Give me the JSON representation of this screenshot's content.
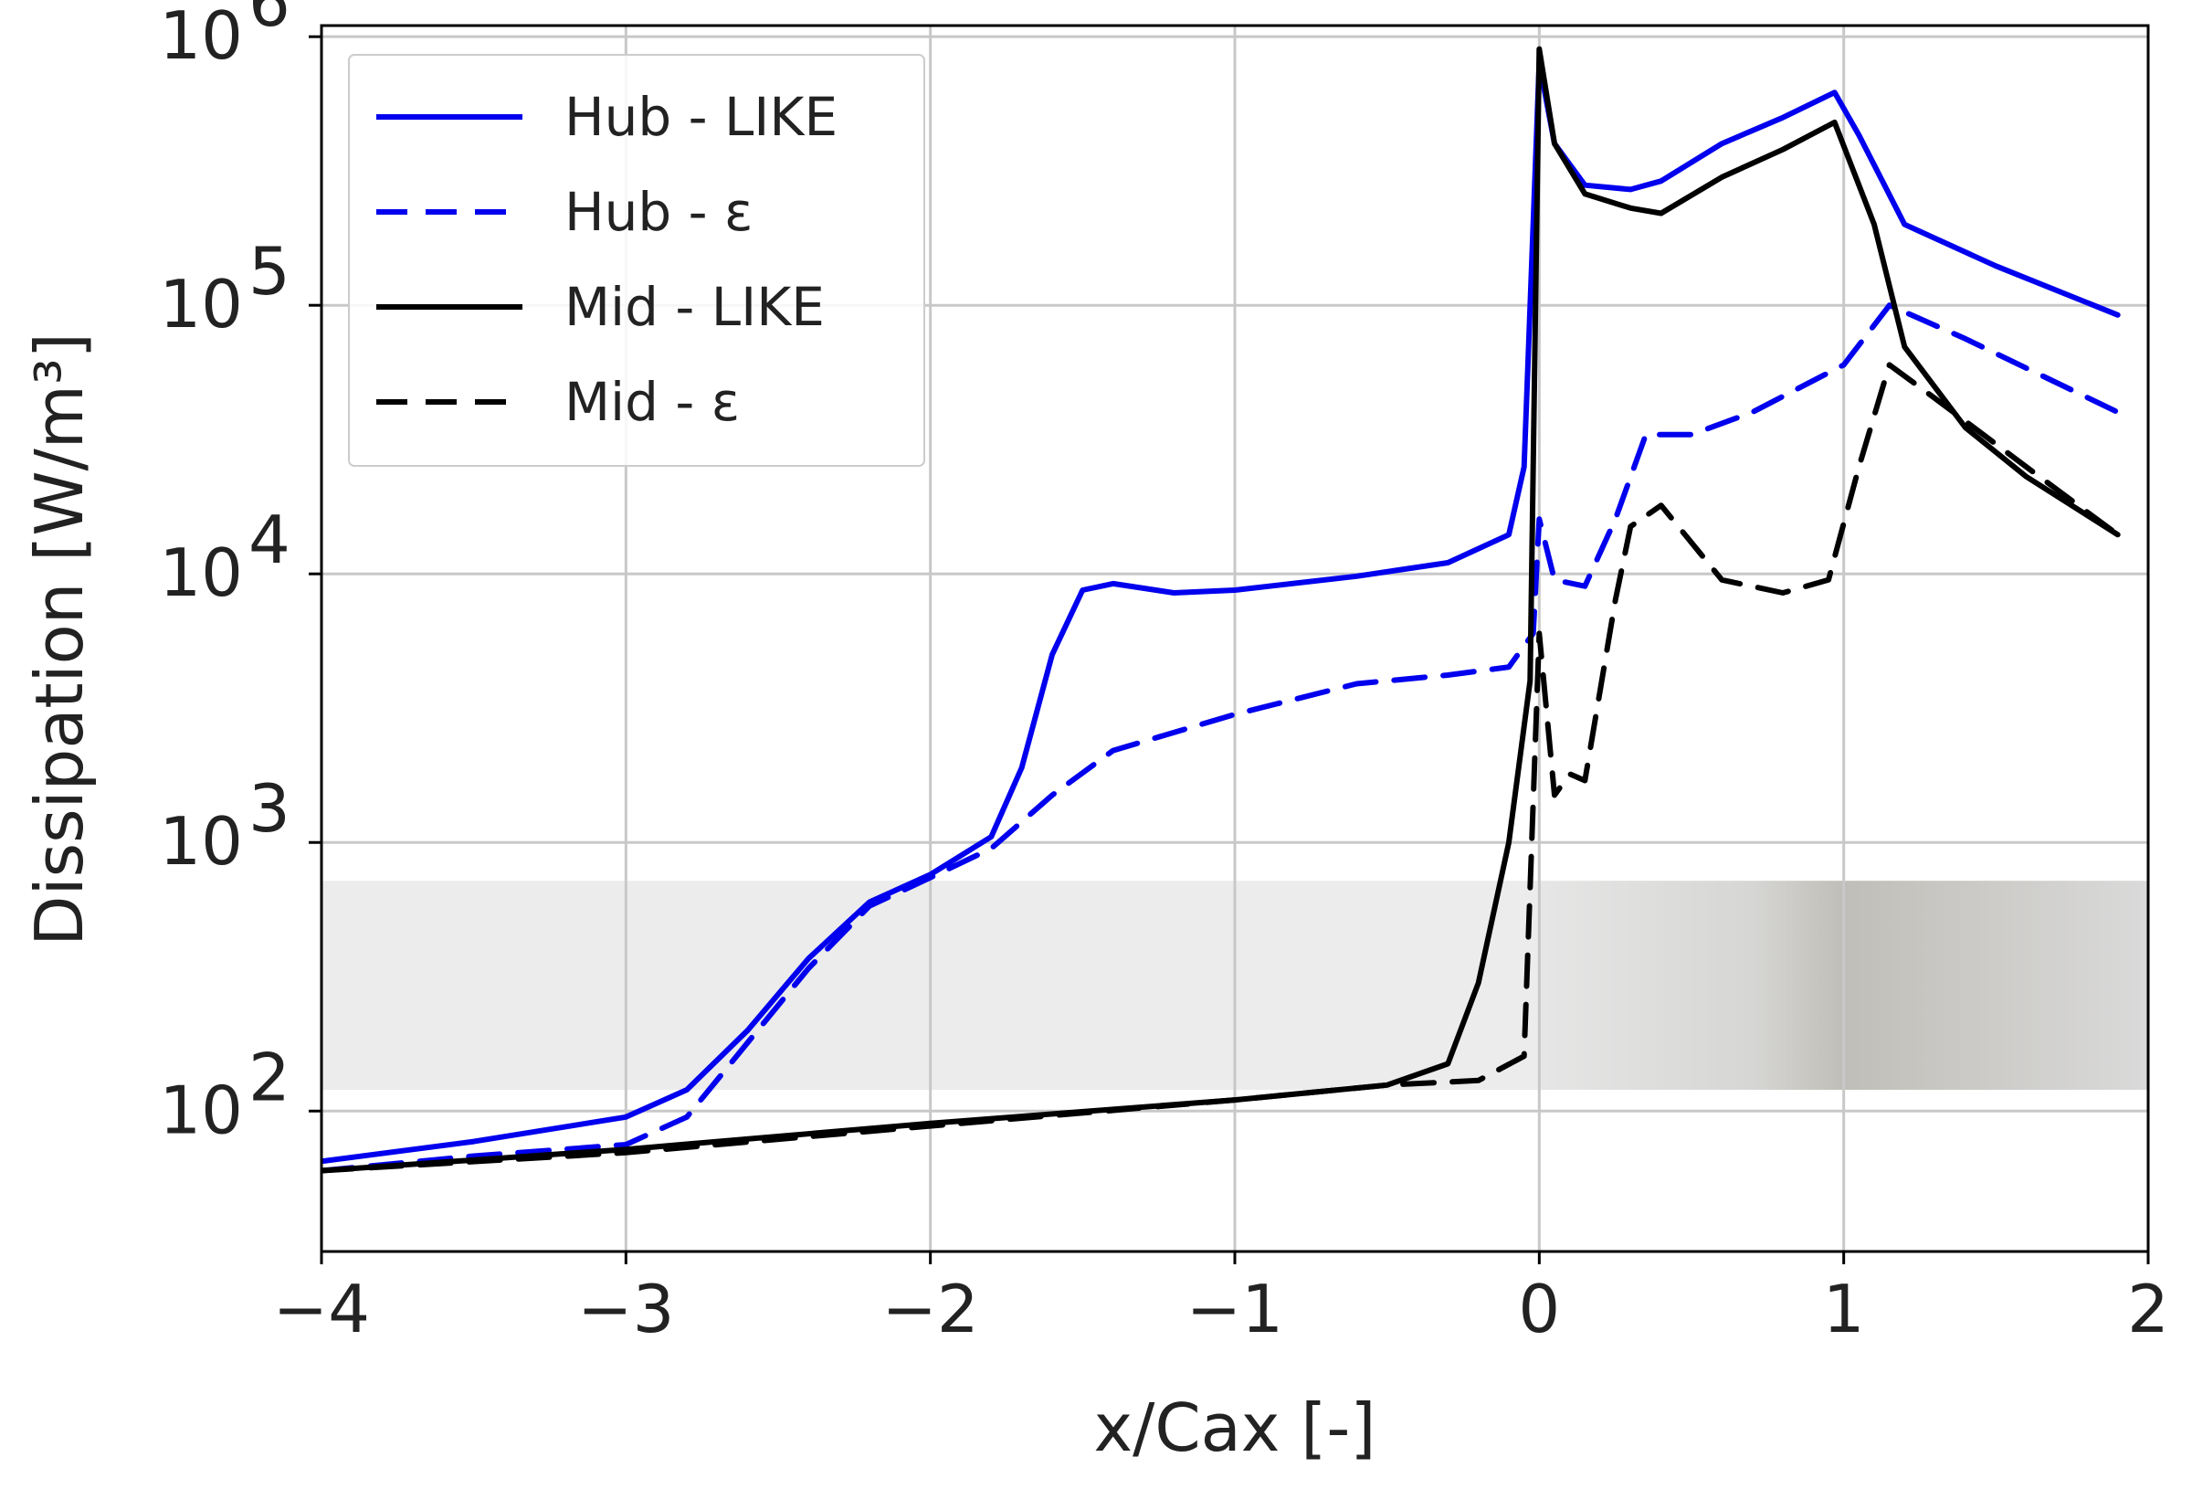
{
  "chart_data": {
    "type": "line",
    "title": "",
    "xlabel": "x/Cax [-]",
    "ylabel": "Dissipation [W/m³]",
    "xlim": [
      -4,
      2
    ],
    "ylim": [
      30,
      1100000
    ],
    "y_scale": "log",
    "grid": true,
    "legend_position": "upper-left",
    "x_ticks": [
      {
        "value": -4,
        "label": "−4"
      },
      {
        "value": -3,
        "label": "−3"
      },
      {
        "value": -2,
        "label": "−2"
      },
      {
        "value": -1,
        "label": "−1"
      },
      {
        "value": 0,
        "label": "0"
      },
      {
        "value": 1,
        "label": "1"
      },
      {
        "value": 2,
        "label": "2"
      }
    ],
    "y_ticks": [
      {
        "value": 100,
        "base": "10",
        "exp": "2"
      },
      {
        "value": 1000,
        "base": "10",
        "exp": "3"
      },
      {
        "value": 10000,
        "base": "10",
        "exp": "4"
      },
      {
        "value": 100000,
        "base": "10",
        "exp": "5"
      },
      {
        "value": 1000000,
        "base": "10",
        "exp": "6"
      }
    ],
    "shaded_regions": [
      {
        "x": [
          -4,
          0
        ],
        "y": [
          120,
          720
        ],
        "color": "#ececec"
      },
      {
        "x": [
          0,
          2
        ],
        "y": [
          120,
          720
        ],
        "color": "#c8c6c0"
      }
    ],
    "series": [
      {
        "name": "Hub - LIKE",
        "color": "#0000ee",
        "dash": "solid",
        "points": [
          [
            -4,
            65
          ],
          [
            -3.5,
            77
          ],
          [
            -3.0,
            95
          ],
          [
            -2.8,
            120
          ],
          [
            -2.6,
            200
          ],
          [
            -2.4,
            370
          ],
          [
            -2.2,
            600
          ],
          [
            -2.0,
            760
          ],
          [
            -1.8,
            1050
          ],
          [
            -1.7,
            1900
          ],
          [
            -1.6,
            5000
          ],
          [
            -1.5,
            8700
          ],
          [
            -1.4,
            9200
          ],
          [
            -1.2,
            8500
          ],
          [
            -1.0,
            8700
          ],
          [
            -0.6,
            9800
          ],
          [
            -0.3,
            11000
          ],
          [
            -0.1,
            14000
          ],
          [
            -0.05,
            25000
          ],
          [
            0.0,
            800000
          ],
          [
            0.05,
            400000
          ],
          [
            0.15,
            280000
          ],
          [
            0.3,
            270000
          ],
          [
            0.4,
            290000
          ],
          [
            0.6,
            400000
          ],
          [
            0.8,
            500000
          ],
          [
            0.97,
            620000
          ],
          [
            1.05,
            430000
          ],
          [
            1.2,
            200000
          ],
          [
            1.5,
            140000
          ],
          [
            1.9,
            92000
          ]
        ]
      },
      {
        "name": "Hub - ε",
        "color": "#0000ee",
        "dash": "dashed",
        "points": [
          [
            -4,
            60
          ],
          [
            -3.5,
            68
          ],
          [
            -3.0,
            75
          ],
          [
            -2.8,
            95
          ],
          [
            -2.6,
            180
          ],
          [
            -2.4,
            340
          ],
          [
            -2.2,
            580
          ],
          [
            -2.0,
            740
          ],
          [
            -1.8,
            950
          ],
          [
            -1.6,
            1500
          ],
          [
            -1.4,
            2200
          ],
          [
            -1.0,
            3000
          ],
          [
            -0.6,
            3900
          ],
          [
            -0.3,
            4200
          ],
          [
            -0.1,
            4500
          ],
          [
            -0.02,
            6000
          ],
          [
            0.0,
            16000
          ],
          [
            0.05,
            9500
          ],
          [
            0.15,
            9000
          ],
          [
            0.25,
            16000
          ],
          [
            0.35,
            33000
          ],
          [
            0.5,
            33000
          ],
          [
            0.7,
            40000
          ],
          [
            1.0,
            60000
          ],
          [
            1.15,
            100000
          ],
          [
            1.4,
            75000
          ],
          [
            1.9,
            40000
          ]
        ]
      },
      {
        "name": "Mid - LIKE",
        "color": "#000000",
        "dash": "solid",
        "points": [
          [
            -4,
            60
          ],
          [
            -3.0,
            72
          ],
          [
            -2.0,
            90
          ],
          [
            -1.0,
            110
          ],
          [
            -0.5,
            125
          ],
          [
            -0.3,
            150
          ],
          [
            -0.2,
            300
          ],
          [
            -0.1,
            1000
          ],
          [
            -0.03,
            4000
          ],
          [
            0.0,
            900000
          ],
          [
            0.05,
            400000
          ],
          [
            0.15,
            260000
          ],
          [
            0.3,
            230000
          ],
          [
            0.4,
            220000
          ],
          [
            0.6,
            300000
          ],
          [
            0.8,
            380000
          ],
          [
            0.97,
            480000
          ],
          [
            1.1,
            200000
          ],
          [
            1.2,
            70000
          ],
          [
            1.4,
            35000
          ],
          [
            1.6,
            23000
          ],
          [
            1.9,
            14000
          ]
        ]
      },
      {
        "name": "Mid - ε",
        "color": "#000000",
        "dash": "dashed",
        "points": [
          [
            -4,
            60
          ],
          [
            -3.0,
            70
          ],
          [
            -2.0,
            88
          ],
          [
            -1.0,
            110
          ],
          [
            -0.5,
            125
          ],
          [
            -0.2,
            130
          ],
          [
            -0.05,
            160
          ],
          [
            0.0,
            6000
          ],
          [
            0.05,
            1500
          ],
          [
            0.1,
            1800
          ],
          [
            0.15,
            1700
          ],
          [
            0.25,
            8000
          ],
          [
            0.3,
            15000
          ],
          [
            0.4,
            18000
          ],
          [
            0.6,
            9500
          ],
          [
            0.8,
            8500
          ],
          [
            0.95,
            9500
          ],
          [
            1.05,
            25000
          ],
          [
            1.15,
            60000
          ],
          [
            1.3,
            45000
          ],
          [
            1.6,
            25000
          ],
          [
            1.9,
            14000
          ]
        ]
      }
    ]
  }
}
